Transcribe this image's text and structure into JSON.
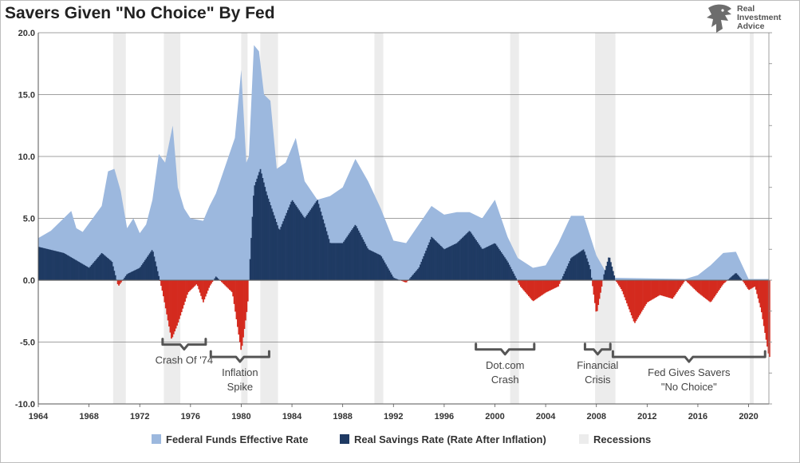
{
  "title": "Savers Given \"No Choice\" By Fed",
  "logo": {
    "line1": "Real",
    "line2": "Investment",
    "line3": "Advice"
  },
  "colors": {
    "fed_funds": "#9cb8de",
    "real_savings_positive": "#1f3a63",
    "real_savings_negative": "#d42a1e",
    "recession": "#ececec",
    "grid": "#808080",
    "annotation": "#555555"
  },
  "legend": [
    {
      "label": "Federal Funds Effective Rate",
      "color": "#9cb8de"
    },
    {
      "label": "Real Savings Rate (Rate After Inflation)",
      "color": "#1f3a63"
    },
    {
      "label": "Recessions",
      "color": "#ececec"
    }
  ],
  "chart_data": {
    "type": "area",
    "xlim": [
      1964,
      2021.6
    ],
    "ylim": [
      -10,
      20
    ],
    "y_ticks": [
      "20.0",
      "15.0",
      "10.0",
      "5.0",
      "0.0",
      "-5.0",
      "-10.0"
    ],
    "y_tick_values": [
      20,
      15,
      10,
      5,
      0,
      -5,
      -10
    ],
    "x_ticks": [
      "1964",
      "1968",
      "1972",
      "1976",
      "1980",
      "1984",
      "1988",
      "1992",
      "1996",
      "2000",
      "2004",
      "2008",
      "2012",
      "2016",
      "2020"
    ],
    "x_tick_values": [
      1964,
      1968,
      1972,
      1976,
      1980,
      1984,
      1988,
      1992,
      1996,
      2000,
      2004,
      2008,
      2012,
      2016,
      2020
    ],
    "recessions": [
      [
        1969.9,
        1970.9
      ],
      [
        1973.9,
        1975.2
      ],
      [
        1980.0,
        1980.5
      ],
      [
        1981.5,
        1982.9
      ],
      [
        1990.5,
        1991.2
      ],
      [
        2001.2,
        2001.9
      ],
      [
        2007.9,
        2009.5
      ],
      [
        2020.1,
        2020.4
      ]
    ],
    "series": [
      {
        "name": "Federal Funds Effective Rate",
        "points": [
          [
            1964,
            3.4
          ],
          [
            1965,
            4.0
          ],
          [
            1966,
            5.0
          ],
          [
            1966.6,
            5.6
          ],
          [
            1967,
            4.2
          ],
          [
            1967.5,
            3.9
          ],
          [
            1968,
            4.6
          ],
          [
            1969,
            6.0
          ],
          [
            1969.5,
            8.8
          ],
          [
            1970,
            9.0
          ],
          [
            1970.5,
            7.2
          ],
          [
            1971,
            4.2
          ],
          [
            1971.5,
            5.0
          ],
          [
            1972,
            3.8
          ],
          [
            1972.5,
            4.5
          ],
          [
            1973,
            6.5
          ],
          [
            1973.5,
            10.2
          ],
          [
            1974,
            9.5
          ],
          [
            1974.6,
            12.5
          ],
          [
            1975,
            7.5
          ],
          [
            1975.5,
            5.8
          ],
          [
            1976,
            5.0
          ],
          [
            1977,
            4.8
          ],
          [
            1977.5,
            6.0
          ],
          [
            1978,
            7.0
          ],
          [
            1979,
            10.0
          ],
          [
            1979.5,
            11.5
          ],
          [
            1980,
            17.0
          ],
          [
            1980.4,
            9.5
          ],
          [
            1980.6,
            10.0
          ],
          [
            1981,
            19.0
          ],
          [
            1981.4,
            18.5
          ],
          [
            1981.8,
            15.0
          ],
          [
            1982.3,
            14.5
          ],
          [
            1982.8,
            9.0
          ],
          [
            1983.5,
            9.5
          ],
          [
            1984.3,
            11.5
          ],
          [
            1985,
            8.0
          ],
          [
            1986,
            6.5
          ],
          [
            1987,
            6.8
          ],
          [
            1988,
            7.5
          ],
          [
            1989,
            9.8
          ],
          [
            1990,
            8.0
          ],
          [
            1991,
            5.8
          ],
          [
            1992,
            3.2
          ],
          [
            1993,
            3.0
          ],
          [
            1994,
            4.5
          ],
          [
            1995,
            6.0
          ],
          [
            1996,
            5.3
          ],
          [
            1997,
            5.5
          ],
          [
            1998,
            5.5
          ],
          [
            1999,
            5.0
          ],
          [
            2000,
            6.5
          ],
          [
            2001,
            3.5
          ],
          [
            2001.8,
            1.8
          ],
          [
            2003,
            1.0
          ],
          [
            2004,
            1.2
          ],
          [
            2005,
            3.0
          ],
          [
            2006,
            5.2
          ],
          [
            2007,
            5.2
          ],
          [
            2008,
            2.0
          ],
          [
            2009,
            0.2
          ],
          [
            2015,
            0.1
          ],
          [
            2016,
            0.4
          ],
          [
            2017,
            1.2
          ],
          [
            2018,
            2.2
          ],
          [
            2019,
            2.3
          ],
          [
            2020,
            0.1
          ],
          [
            2021.6,
            0.1
          ]
        ]
      },
      {
        "name": "Real Savings Rate (Rate After Inflation)",
        "points": [
          [
            1964,
            2.7
          ],
          [
            1966,
            2.2
          ],
          [
            1968,
            1.0
          ],
          [
            1969,
            2.2
          ],
          [
            1969.8,
            1.5
          ],
          [
            1970.3,
            -0.5
          ],
          [
            1971,
            0.5
          ],
          [
            1972,
            1.0
          ],
          [
            1973,
            2.5
          ],
          [
            1973.8,
            -1.0
          ],
          [
            1974.5,
            -4.8
          ],
          [
            1975,
            -3.5
          ],
          [
            1975.8,
            -1.0
          ],
          [
            1976.5,
            -0.3
          ],
          [
            1977,
            -1.8
          ],
          [
            1977.5,
            -0.5
          ],
          [
            1978,
            0.3
          ],
          [
            1978.5,
            -0.2
          ],
          [
            1979.3,
            -1.0
          ],
          [
            1980,
            -5.8
          ],
          [
            1980.5,
            -2.0
          ],
          [
            1981,
            7.5
          ],
          [
            1981.5,
            9.0
          ],
          [
            1982,
            7.0
          ],
          [
            1983,
            4.0
          ],
          [
            1984,
            6.5
          ],
          [
            1985,
            5.0
          ],
          [
            1986,
            6.5
          ],
          [
            1987,
            3.0
          ],
          [
            1988,
            3.0
          ],
          [
            1989,
            4.5
          ],
          [
            1990,
            2.5
          ],
          [
            1991,
            2.0
          ],
          [
            1992,
            0.2
          ],
          [
            1993,
            -0.2
          ],
          [
            1994,
            1.0
          ],
          [
            1995,
            3.5
          ],
          [
            1996,
            2.5
          ],
          [
            1997,
            3.0
          ],
          [
            1998,
            4.0
          ],
          [
            1999,
            2.5
          ],
          [
            2000,
            3.0
          ],
          [
            2001,
            1.5
          ],
          [
            2002,
            -0.5
          ],
          [
            2003,
            -1.7
          ],
          [
            2004,
            -1.0
          ],
          [
            2005,
            -0.5
          ],
          [
            2006,
            1.8
          ],
          [
            2007,
            2.5
          ],
          [
            2007.5,
            1.0
          ],
          [
            2008,
            -2.8
          ],
          [
            2008.6,
            0.5
          ],
          [
            2009,
            2.0
          ],
          [
            2009.5,
            0.0
          ],
          [
            2010,
            -0.8
          ],
          [
            2011,
            -3.5
          ],
          [
            2012,
            -1.8
          ],
          [
            2013,
            -1.2
          ],
          [
            2014,
            -1.5
          ],
          [
            2015,
            0.0
          ],
          [
            2016,
            -1.0
          ],
          [
            2017,
            -1.8
          ],
          [
            2018,
            -0.3
          ],
          [
            2019,
            0.6
          ],
          [
            2019.5,
            0.0
          ],
          [
            2020,
            -0.8
          ],
          [
            2020.5,
            -0.5
          ],
          [
            2021,
            -2.5
          ],
          [
            2021.6,
            -6.2
          ]
        ]
      }
    ],
    "annotations": [
      {
        "lines": [
          "Crash Of '74"
        ],
        "x_from": 1973.8,
        "x_to": 1977.2,
        "y": -5.2
      },
      {
        "lines": [
          "Inflation",
          "Spike"
        ],
        "x_from": 1977.6,
        "x_to": 1982.2,
        "y": -6.2
      },
      {
        "lines": [
          "Dot.com",
          "Crash"
        ],
        "x_from": 1998.5,
        "x_to": 2003.1,
        "y": -5.6
      },
      {
        "lines": [
          "Financial",
          "Crisis"
        ],
        "x_from": 2007.1,
        "x_to": 2009.1,
        "y": -5.6
      },
      {
        "lines": [
          "Fed Gives Savers",
          "\"No Choice\""
        ],
        "x_from": 2009.3,
        "x_to": 2021.3,
        "y": -6.2
      }
    ]
  }
}
